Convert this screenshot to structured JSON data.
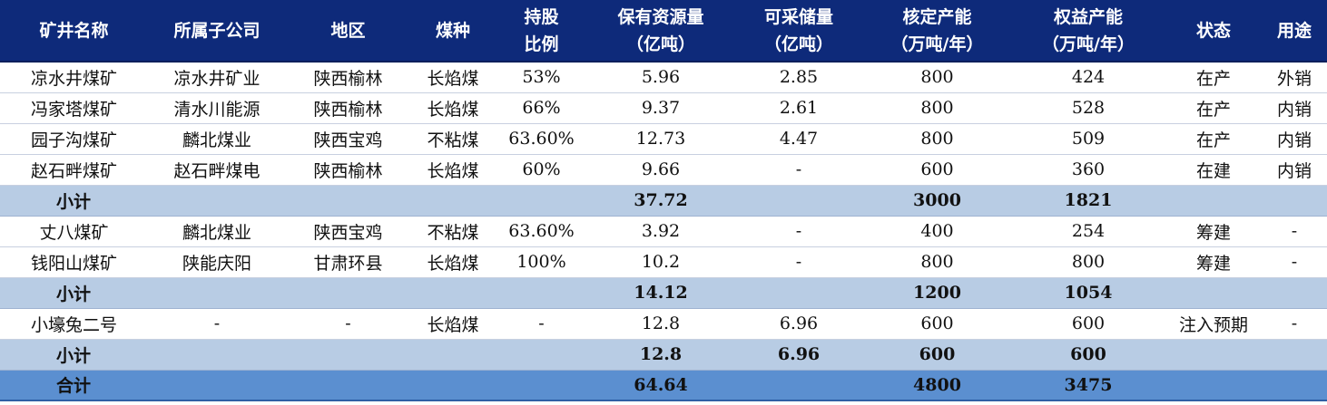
{
  "table": {
    "columns": [
      {
        "lines": [
          "矿井名称"
        ]
      },
      {
        "lines": [
          "所属子公司"
        ]
      },
      {
        "lines": [
          "地区"
        ]
      },
      {
        "lines": [
          "煤种"
        ]
      },
      {
        "lines": [
          "持股",
          "比例"
        ]
      },
      {
        "lines": [
          "保有资源量",
          "（亿吨）"
        ]
      },
      {
        "lines": [
          "可采储量",
          "（亿吨）"
        ]
      },
      {
        "lines": [
          "核定产能",
          "（万吨/年）"
        ]
      },
      {
        "lines": [
          "权益产能",
          "（万吨/年）"
        ]
      },
      {
        "lines": [
          "状态"
        ]
      },
      {
        "lines": [
          "用途"
        ]
      }
    ],
    "rows": [
      {
        "type": "data",
        "cells": [
          "凉水井煤矿",
          "凉水井矿业",
          "陕西榆林",
          "长焰煤",
          "53%",
          "5.96",
          "2.85",
          "800",
          "424",
          "在产",
          "外销"
        ]
      },
      {
        "type": "data",
        "cells": [
          "冯家塔煤矿",
          "清水川能源",
          "陕西榆林",
          "长焰煤",
          "66%",
          "9.37",
          "2.61",
          "800",
          "528",
          "在产",
          "内销"
        ]
      },
      {
        "type": "data",
        "cells": [
          "园子沟煤矿",
          "麟北煤业",
          "陕西宝鸡",
          "不粘煤",
          "63.60%",
          "12.73",
          "4.47",
          "800",
          "509",
          "在产",
          "内销"
        ]
      },
      {
        "type": "data",
        "cells": [
          "赵石畔煤矿",
          "赵石畔煤电",
          "陕西榆林",
          "长焰煤",
          "60%",
          "9.66",
          "-",
          "600",
          "360",
          "在建",
          "内销"
        ]
      },
      {
        "type": "subtotal",
        "label": "小计",
        "cells": [
          "37.72",
          "",
          "3000",
          "1821",
          "",
          ""
        ]
      },
      {
        "type": "data",
        "cells": [
          "丈八煤矿",
          "麟北煤业",
          "陕西宝鸡",
          "不粘煤",
          "63.60%",
          "3.92",
          "-",
          "400",
          "254",
          "筹建",
          "-"
        ]
      },
      {
        "type": "data",
        "cells": [
          "钱阳山煤矿",
          "陕能庆阳",
          "甘肃环县",
          "长焰煤",
          "100%",
          "10.2",
          "-",
          "800",
          "800",
          "筹建",
          "-"
        ]
      },
      {
        "type": "subtotal",
        "label": "小计",
        "cells": [
          "14.12",
          "",
          "1200",
          "1054",
          "",
          ""
        ]
      },
      {
        "type": "data",
        "cells": [
          "小壕兔二号",
          "-",
          "-",
          "长焰煤",
          "-",
          "12.8",
          "6.96",
          "600",
          "600",
          "注入预期",
          "-"
        ]
      },
      {
        "type": "subtotal",
        "label": "小计",
        "cells": [
          "12.8",
          "6.96",
          "600",
          "600",
          "",
          ""
        ]
      },
      {
        "type": "total",
        "label": "合计",
        "cells": [
          "64.64",
          "",
          "4800",
          "3475",
          "",
          ""
        ]
      }
    ]
  }
}
